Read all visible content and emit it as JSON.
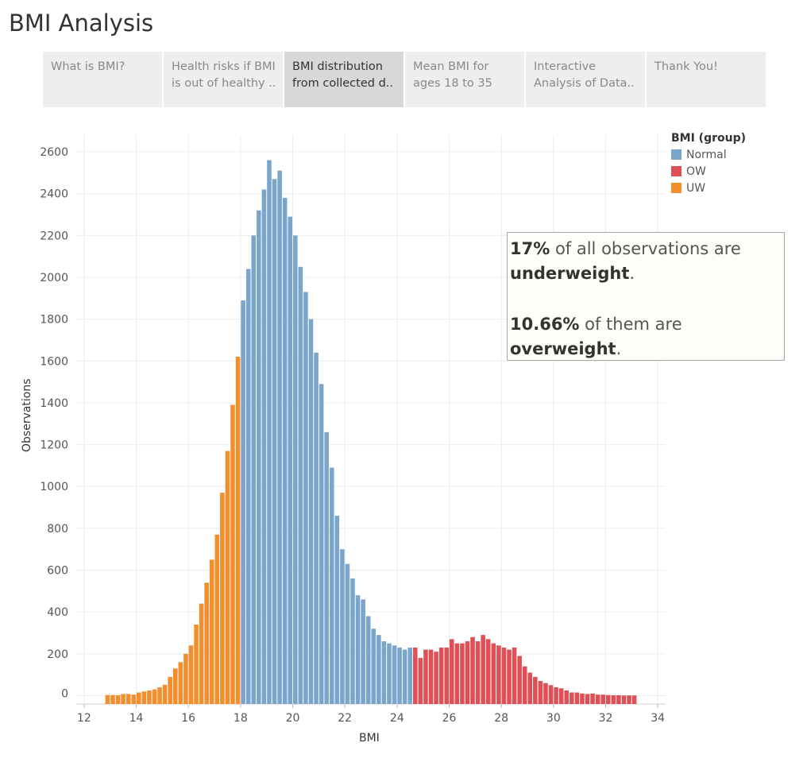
{
  "page": {
    "title": "BMI Analysis"
  },
  "tabs": [
    {
      "line1": "What is BMI?",
      "line2": ""
    },
    {
      "line1": "Health risks if BMI",
      "line2": "is out of healthy .."
    },
    {
      "line1": "BMI distribution",
      "line2": "from collected d..",
      "active": true
    },
    {
      "line1": "Mean BMI for",
      "line2": "ages 18 to 35"
    },
    {
      "line1": "Interactive",
      "line2": "Analysis of Data.."
    },
    {
      "line1": "Thank You!",
      "line2": ""
    }
  ],
  "legend": {
    "title": "BMI (group)",
    "items": [
      {
        "label": "Normal",
        "color": "#7aa6cc"
      },
      {
        "label": "OW",
        "color": "#de5055"
      },
      {
        "label": "UW",
        "color": "#f28e2b"
      }
    ]
  },
  "annotation": {
    "p1_bold1": "17%",
    "p1_text1": " of all observations are",
    "p1_bold2": "underweight",
    "p1_text2": ".",
    "p2_bold1": "10.66%",
    "p2_text1": " of them are",
    "p2_bold2": "overweight",
    "p2_text2": "."
  },
  "chart_data": {
    "type": "bar",
    "xlabel": "BMI",
    "ylabel": "Observations",
    "xlim": [
      11.7,
      34.3
    ],
    "ylim": [
      -40,
      2680
    ],
    "xticks": [
      12,
      14,
      16,
      18,
      20,
      22,
      24,
      26,
      28,
      30,
      32,
      34
    ],
    "yticks": [
      0,
      200,
      400,
      600,
      800,
      1000,
      1200,
      1400,
      1600,
      1800,
      2000,
      2200,
      2400,
      2600
    ],
    "bin_width": 0.2,
    "grid": true,
    "legend_position": "top-right",
    "series": [
      {
        "name": "UW",
        "color": "#f28e2b",
        "x": [
          12.8,
          13.0,
          13.2,
          13.4,
          13.6,
          13.8,
          14.0,
          14.2,
          14.4,
          14.6,
          14.8,
          15.0,
          15.2,
          15.4,
          15.6,
          15.8,
          16.0,
          16.2,
          16.4,
          16.6,
          16.8,
          17.0,
          17.2,
          17.4,
          17.6,
          17.8
        ],
        "values": [
          3,
          3,
          2,
          8,
          8,
          5,
          15,
          20,
          25,
          30,
          40,
          52,
          90,
          130,
          160,
          200,
          240,
          340,
          440,
          540,
          650,
          770,
          970,
          1170,
          1390,
          1620
        ]
      },
      {
        "name": "Normal",
        "color": "#7aa6cc",
        "x": [
          18.0,
          18.2,
          18.4,
          18.6,
          18.8,
          19.0,
          19.2,
          19.4,
          19.6,
          19.8,
          20.0,
          20.2,
          20.4,
          20.6,
          20.8,
          21.0,
          21.2,
          21.4,
          21.6,
          21.8,
          22.0,
          22.2,
          22.4,
          22.6,
          22.8,
          23.0,
          23.2,
          23.4,
          23.6,
          23.8,
          24.0,
          24.2,
          24.4
        ],
        "values": [
          1890,
          2040,
          2200,
          2320,
          2420,
          2560,
          2470,
          2510,
          2380,
          2290,
          2200,
          2050,
          1930,
          1800,
          1640,
          1490,
          1260,
          1090,
          860,
          700,
          630,
          560,
          480,
          460,
          380,
          320,
          290,
          260,
          250,
          240,
          230,
          220,
          230
        ]
      },
      {
        "name": "OW",
        "color": "#de5055",
        "x": [
          24.6,
          24.8,
          25.0,
          25.2,
          25.4,
          25.6,
          25.8,
          26.0,
          26.2,
          26.4,
          26.6,
          26.8,
          27.0,
          27.2,
          27.4,
          27.6,
          27.8,
          28.0,
          28.2,
          28.4,
          28.6,
          28.8,
          29.0,
          29.2,
          29.4,
          29.6,
          29.8,
          30.0,
          30.2,
          30.4,
          30.6,
          30.8,
          31.0,
          31.2,
          31.4,
          31.6,
          31.8,
          32.0,
          32.2,
          32.4,
          32.6,
          32.8,
          33.0
        ],
        "values": [
          230,
          180,
          220,
          220,
          210,
          230,
          230,
          270,
          250,
          250,
          260,
          280,
          260,
          290,
          270,
          250,
          240,
          230,
          220,
          230,
          190,
          140,
          110,
          90,
          70,
          60,
          50,
          40,
          35,
          25,
          15,
          15,
          10,
          8,
          10,
          5,
          5,
          3,
          2,
          2,
          1,
          1,
          1
        ]
      }
    ]
  }
}
